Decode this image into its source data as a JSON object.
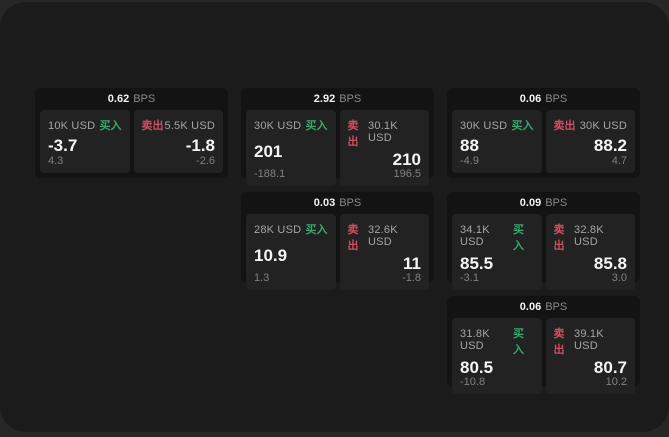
{
  "colors": {
    "page_background": "#272727",
    "window_background": "#1b1b1b",
    "card_background": "#131313",
    "panel_background": "#222222",
    "buy_green": "#36a86c",
    "sell_red": "#cf4e63"
  },
  "cards": [
    {
      "bps_value": "0.62",
      "bps_unit": "BPS",
      "buy": {
        "amount": "10K USD",
        "side_label": "买入",
        "price": "-3.7",
        "delta": "4.3"
      },
      "sell": {
        "side_label": "卖出",
        "amount": "5.5K USD",
        "price": "-1.8",
        "delta": "-2.6"
      }
    },
    {
      "bps_value": "2.92",
      "bps_unit": "BPS",
      "buy": {
        "amount": "30K USD",
        "side_label": "买入",
        "price": "201",
        "delta": "-188.1"
      },
      "sell": {
        "side_label": "卖出",
        "amount": "30.1K USD",
        "price": "210",
        "delta": "196.5"
      }
    },
    {
      "bps_value": "0.06",
      "bps_unit": "BPS",
      "buy": {
        "amount": "30K USD",
        "side_label": "买入",
        "price": "88",
        "delta": "-4.9"
      },
      "sell": {
        "side_label": "卖出",
        "amount": "30K USD",
        "price": "88.2",
        "delta": "4.7"
      }
    },
    {
      "bps_value": "0.03",
      "bps_unit": "BPS",
      "buy": {
        "amount": "28K USD",
        "side_label": "买入",
        "price": "10.9",
        "delta": "1.3"
      },
      "sell": {
        "side_label": "卖出",
        "amount": "32.6K USD",
        "price": "11",
        "delta": "-1.8"
      }
    },
    {
      "bps_value": "0.09",
      "bps_unit": "BPS",
      "buy": {
        "amount": "34.1K USD",
        "side_label": "买入",
        "price": "85.5",
        "delta": "-3.1"
      },
      "sell": {
        "side_label": "卖出",
        "amount": "32.8K USD",
        "price": "85.8",
        "delta": "3.0"
      }
    },
    {
      "bps_value": "0.06",
      "bps_unit": "BPS",
      "buy": {
        "amount": "31.8K USD",
        "side_label": "买入",
        "price": "80.5",
        "delta": "-10.8"
      },
      "sell": {
        "side_label": "卖出",
        "amount": "39.1K USD",
        "price": "80.7",
        "delta": "10.2"
      }
    }
  ]
}
